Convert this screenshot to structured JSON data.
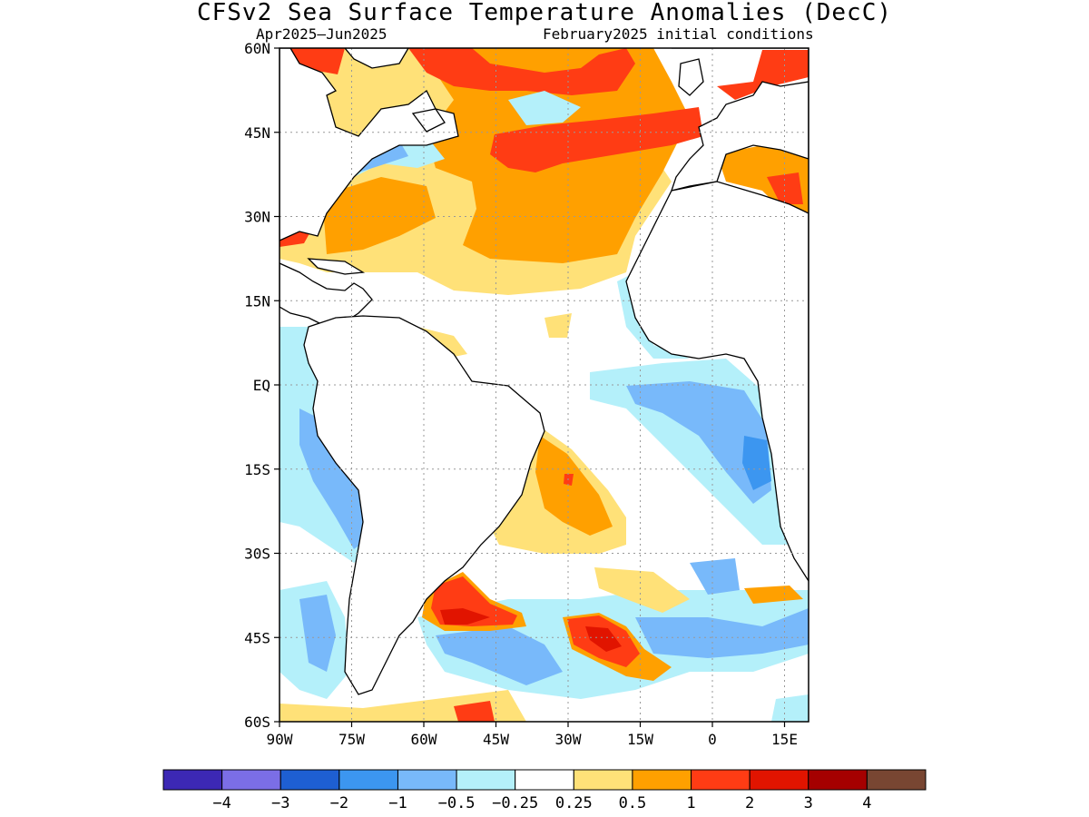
{
  "title": "CFSv2 Sea Surface Temperature Anomalies (DecC)",
  "period": "Apr2025–Jun2025",
  "initial_conditions": "February2025 initial conditions",
  "map": {
    "lon_range": [
      -90,
      20
    ],
    "lat_range": [
      -60,
      60
    ],
    "lat_ticks": [
      {
        "value": 60,
        "label": "60N"
      },
      {
        "value": 45,
        "label": "45N"
      },
      {
        "value": 30,
        "label": "30N"
      },
      {
        "value": 15,
        "label": "15N"
      },
      {
        "value": 0,
        "label": "EQ"
      },
      {
        "value": -15,
        "label": "15S"
      },
      {
        "value": -30,
        "label": "30S"
      },
      {
        "value": -45,
        "label": "45S"
      },
      {
        "value": -60,
        "label": "60S"
      }
    ],
    "lon_ticks": [
      {
        "value": -90,
        "label": "90W"
      },
      {
        "value": -75,
        "label": "75W"
      },
      {
        "value": -60,
        "label": "60W"
      },
      {
        "value": -45,
        "label": "45W"
      },
      {
        "value": -30,
        "label": "30W"
      },
      {
        "value": -15,
        "label": "15W"
      },
      {
        "value": 0,
        "label": "0"
      },
      {
        "value": 15,
        "label": "15E"
      }
    ],
    "grid": "dotted"
  },
  "colorbar": {
    "colors": [
      "#3c28b4",
      "#7b6ee6",
      "#1e5fd2",
      "#3c96f0",
      "#78b9fa",
      "#b4f0fa",
      "#ffffff",
      "#ffe178",
      "#ffa000",
      "#ff3c14",
      "#e11400",
      "#a50000",
      "#784632"
    ],
    "labels": [
      "−4",
      "−3",
      "−2",
      "−1",
      "−0.5",
      "−0.25",
      "0.25",
      "0.5",
      "1",
      "2",
      "3",
      "4"
    ]
  },
  "palette": {
    "yellow": "#ffe178",
    "orange": "#ffa000",
    "red": "#ff3c14",
    "darkred": "#e11400",
    "lightcyan": "#b4f0fa",
    "lightblue": "#78b9fa",
    "blue": "#3c96f0",
    "land": "#ffffff",
    "coast": "#000000"
  }
}
